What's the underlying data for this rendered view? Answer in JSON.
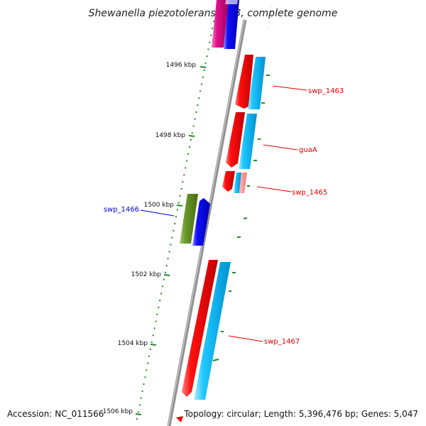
{
  "title": "Shewanella piezotolerans WP3, complete genome",
  "footer": {
    "accession": "Accession: NC_011566",
    "topology": "Topology: circular; Length: 5,396,476 bp; Genes: 5,047"
  },
  "ticks": [
    "1496 kbp",
    "1498 kbp",
    "1500 kbp",
    "1502 kbp",
    "1504 kbp",
    "1506 kbp"
  ],
  "labels": {
    "swp_1463": "swp_1463",
    "guaA": "guaA",
    "swp_1465": "swp_1465",
    "swp_1466": "swp_1466",
    "swp_1467": "swp_1467"
  },
  "colors": {
    "red": "#ff0000",
    "cyan": "#00bfff",
    "blue": "#0000ff",
    "magenta": "#e0007a",
    "olive": "#5a8a1a",
    "pink": "#ff8080",
    "tick": "#228b22",
    "backbone": "#808080",
    "label_red": "#dd0000",
    "label_blue": "#0000cc"
  }
}
